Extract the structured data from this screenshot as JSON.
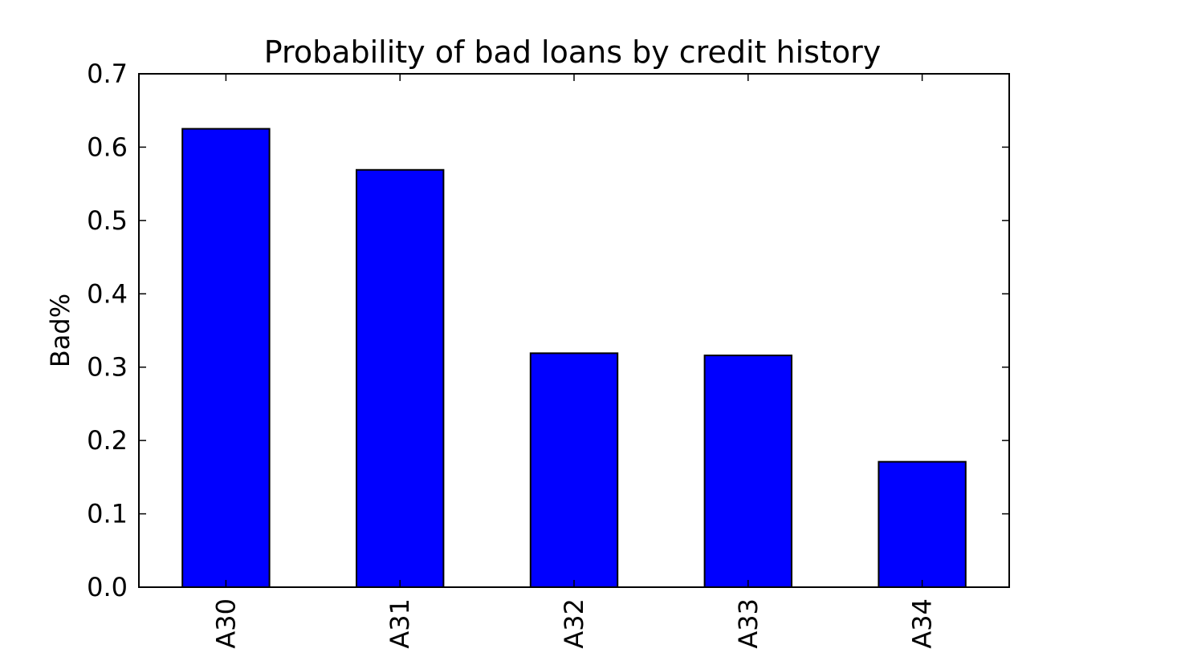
{
  "chart_data": {
    "type": "bar",
    "title": "Probability of bad loans by credit history",
    "xlabel": "",
    "ylabel": "Bad%",
    "categories": [
      "A30",
      "A31",
      "A32",
      "A33",
      "A34"
    ],
    "values": [
      0.625,
      0.569,
      0.319,
      0.316,
      0.171
    ],
    "ylim": [
      0,
      0.7
    ],
    "yticks": [
      0.0,
      0.1,
      0.2,
      0.3,
      0.4,
      0.5,
      0.6,
      0.7
    ],
    "ytick_labels": [
      "0.0",
      "0.1",
      "0.2",
      "0.3",
      "0.4",
      "0.5",
      "0.6",
      "0.7"
    ],
    "bar_color": "#0000ff",
    "edge_color": "#000000",
    "grid": false,
    "legend": "none",
    "xtick_rotation": "vertical"
  }
}
